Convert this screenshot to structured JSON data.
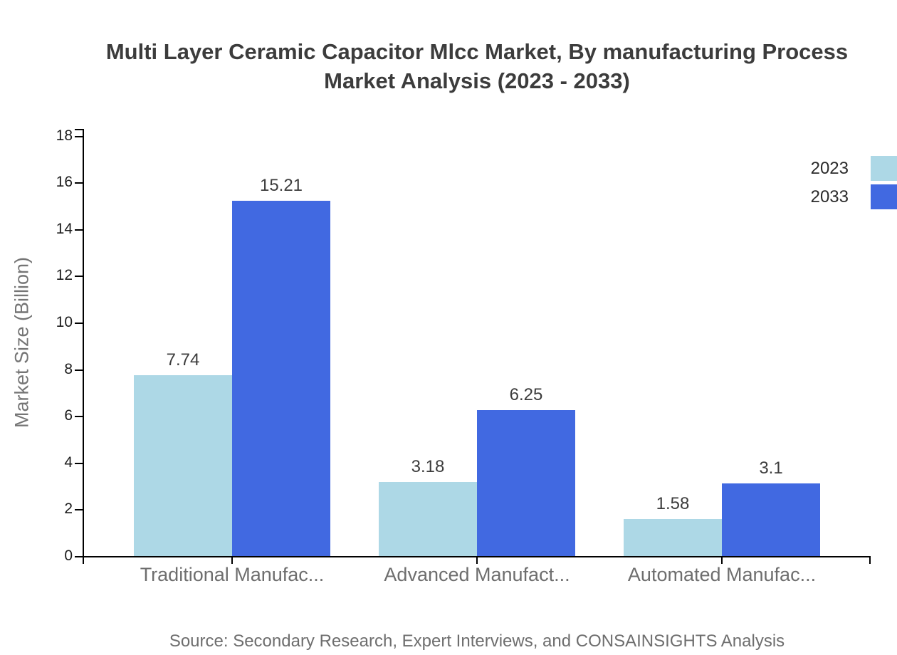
{
  "title": {
    "lines": [
      "Multi Layer Ceramic Capacitor Mlcc Market, By manufacturing Process",
      "Market Analysis (2023 - 2033)"
    ]
  },
  "source": "Source: Secondary Research, Expert Interviews, and CONSAINSIGHTS Analysis",
  "colors": {
    "series_2023": "#ADD8E6",
    "series_2033": "#4169E1",
    "axis": "#000000",
    "title_text": "#3C3C3C",
    "muted_text": "#6E6E6E"
  },
  "legend": {
    "items": [
      {
        "label": "2023",
        "color": "#ADD8E6"
      },
      {
        "label": "2033",
        "color": "#4169E1"
      }
    ]
  },
  "chart_data": {
    "type": "bar",
    "title": "Multi Layer Ceramic Capacitor Mlcc Market, By manufacturing Process Market Analysis (2023 - 2033)",
    "categories": [
      "Traditional Manufac...",
      "Advanced Manufact...",
      "Automated Manufac..."
    ],
    "series": [
      {
        "name": "2023",
        "color": "#ADD8E6",
        "values": [
          7.74,
          3.18,
          1.58
        ],
        "labels": [
          "7.74",
          "3.18",
          "1.58"
        ]
      },
      {
        "name": "2033",
        "color": "#4169E1",
        "values": [
          15.21,
          6.25,
          3.1
        ],
        "labels": [
          "15.21",
          "6.25",
          "3.1"
        ]
      }
    ],
    "xlabel": "",
    "ylabel": "Market Size (Billion)",
    "ylim": [
      0,
      18
    ],
    "ytick_step": 2,
    "grid": false,
    "legend_position": "top-right"
  }
}
